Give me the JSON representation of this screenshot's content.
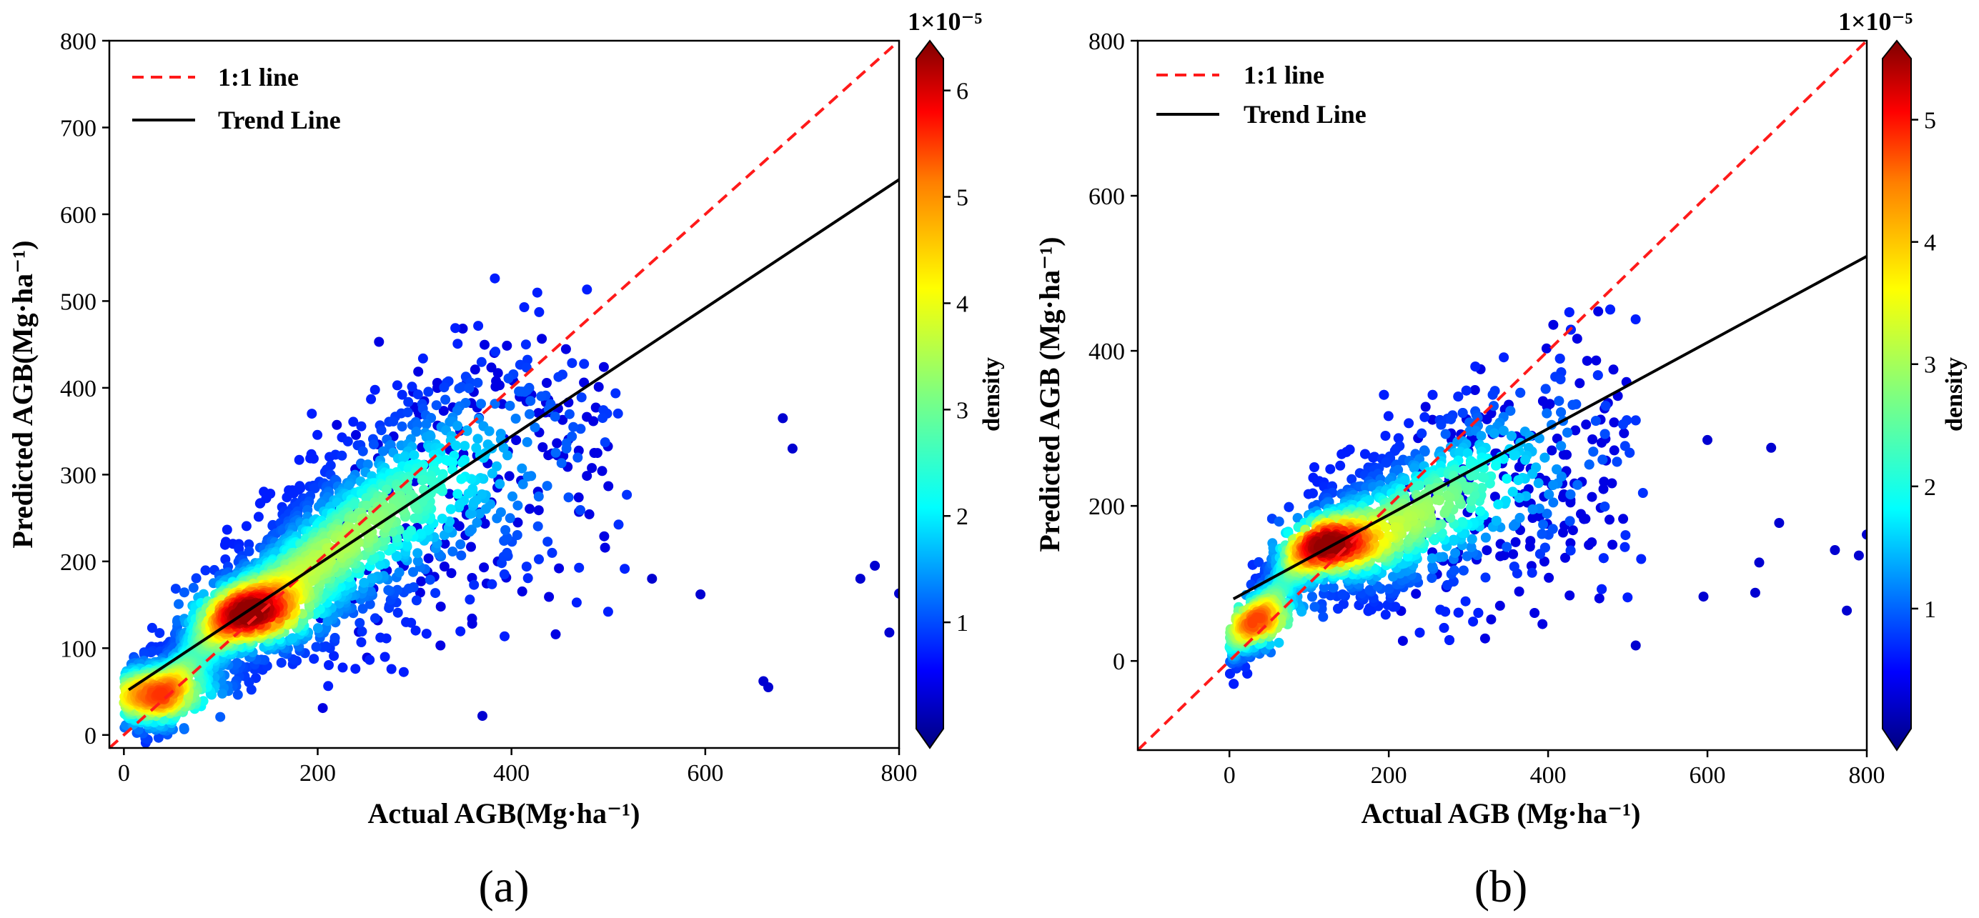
{
  "figure": {
    "panels": [
      "(a)",
      "(b)"
    ]
  },
  "colors": {
    "one_to_one": "#ff1a1a",
    "trend": "#000000",
    "colormap": [
      "#00007f",
      "#0000ff",
      "#007fff",
      "#00ffff",
      "#7fff7f",
      "#ffff00",
      "#ff7f00",
      "#ff0000",
      "#7f0000"
    ]
  },
  "chart_data": [
    {
      "type": "scatter",
      "panel_label": "(a)",
      "xlabel": "Actual AGB(Mg·ha⁻¹)",
      "ylabel": "Predicted AGB(Mg·ha⁻¹)",
      "xlim": [
        -15,
        800
      ],
      "ylim": [
        -15,
        800
      ],
      "xticks": [
        0,
        200,
        400,
        600,
        800
      ],
      "yticks": [
        0,
        100,
        200,
        300,
        400,
        500,
        600,
        700,
        800
      ],
      "legend": {
        "position": "top-left",
        "entries": [
          "1:1 line",
          "Trend Line"
        ]
      },
      "one_to_one": {
        "x": [
          -15,
          800
        ],
        "y": [
          -15,
          800
        ]
      },
      "trend_line": {
        "x": [
          5,
          800
        ],
        "y": [
          52,
          640
        ]
      },
      "colorbar": {
        "label": "density",
        "ticks": [
          1,
          2,
          3,
          4,
          5,
          6
        ],
        "range": [
          0,
          6.3
        ],
        "multiplier": "1×10⁻⁵"
      },
      "point_cloud": {
        "description_level": "summary",
        "core_ridge": [
          [
            5,
            45
          ],
          [
            40,
            50
          ],
          [
            70,
            90
          ],
          [
            120,
            140
          ],
          [
            200,
            200
          ],
          [
            280,
            260
          ],
          [
            350,
            300
          ],
          [
            420,
            320
          ]
        ],
        "high_density_centers": [
          [
            130,
            140
          ],
          [
            35,
            45
          ]
        ],
        "outliers": [
          [
            760,
            180
          ],
          [
            775,
            195
          ],
          [
            790,
            118
          ],
          [
            800,
            163
          ],
          [
            665,
            55
          ],
          [
            660,
            62
          ],
          [
            680,
            365
          ],
          [
            690,
            330
          ],
          [
            595,
            162
          ],
          [
            545,
            180
          ],
          [
            370,
            22
          ]
        ]
      }
    },
    {
      "type": "scatter",
      "panel_label": "(b)",
      "xlabel": "Actual AGB (Mg·ha⁻¹)",
      "ylabel": "Predicted AGB (Mg·ha⁻¹)",
      "xlim": [
        -115,
        800
      ],
      "ylim": [
        -115,
        800
      ],
      "xticks": [
        0,
        200,
        400,
        600,
        800
      ],
      "yticks": [
        0,
        200,
        400,
        600,
        800
      ],
      "legend": {
        "position": "top-left",
        "entries": [
          "1:1 line",
          "Trend Line"
        ]
      },
      "one_to_one": {
        "x": [
          -115,
          800
        ],
        "y": [
          -115,
          800
        ]
      },
      "trend_line": {
        "x": [
          5,
          800
        ],
        "y": [
          80,
          522
        ]
      },
      "colorbar": {
        "label": "density",
        "ticks": [
          1,
          2,
          3,
          4,
          5
        ],
        "range": [
          0,
          5.5
        ],
        "multiplier": "1×10⁻⁵"
      },
      "point_cloud": {
        "description_level": "summary",
        "core_ridge": [
          [
            5,
            20
          ],
          [
            30,
            50
          ],
          [
            80,
            120
          ],
          [
            120,
            150
          ],
          [
            200,
            170
          ],
          [
            280,
            210
          ],
          [
            350,
            240
          ],
          [
            420,
            260
          ]
        ],
        "high_density_centers": [
          [
            120,
            150
          ],
          [
            35,
            50
          ]
        ],
        "outliers": [
          [
            760,
            143
          ],
          [
            775,
            65
          ],
          [
            790,
            136
          ],
          [
            800,
            163
          ],
          [
            665,
            127
          ],
          [
            660,
            88
          ],
          [
            680,
            275
          ],
          [
            690,
            178
          ],
          [
            595,
            83
          ],
          [
            510,
            20
          ],
          [
            600,
            285
          ]
        ]
      }
    }
  ]
}
